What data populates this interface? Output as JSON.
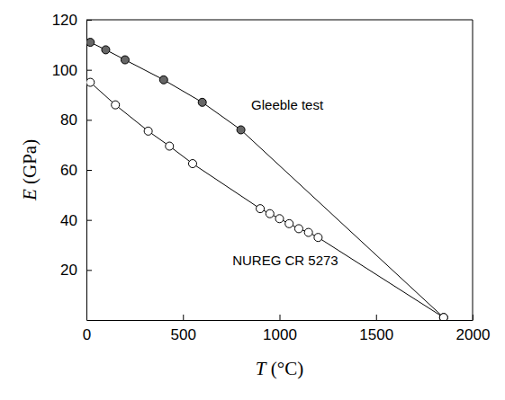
{
  "chart_data": {
    "type": "line",
    "x_label": "T (°C)",
    "y_label": "E (GPa)",
    "xlim": [
      0,
      2000
    ],
    "xticks": [
      0,
      500,
      1000,
      1500,
      2000
    ],
    "ylim": [
      0,
      120
    ],
    "yticks": [
      20,
      40,
      60,
      80,
      100,
      120
    ],
    "grid": false,
    "series": [
      {
        "name": "Gleeble test",
        "color": "#666666",
        "marker": "circle",
        "line_style": "solid",
        "x": [
          20,
          100,
          200,
          400,
          600,
          800,
          1850
        ],
        "values": [
          111,
          108,
          104,
          96,
          87,
          76,
          1
        ]
      },
      {
        "name": "NUREG CR 5273",
        "color": "#ffffff",
        "marker": "circle",
        "line_style": "solid",
        "x": [
          20,
          150,
          320,
          430,
          550,
          900,
          950,
          1000,
          1050,
          1100,
          1150,
          1200,
          1850
        ],
        "values": [
          95,
          86,
          75.5,
          69.5,
          62.5,
          44.5,
          42.5,
          40.5,
          38.5,
          36.5,
          35,
          33,
          1
        ]
      }
    ],
    "annotations": [
      {
        "text": "Gleeble test",
        "x": 1040,
        "y": 84,
        "series": 0
      },
      {
        "text": "NUREG CR 5273",
        "x": 1030,
        "y": 22,
        "series": 1
      }
    ]
  }
}
